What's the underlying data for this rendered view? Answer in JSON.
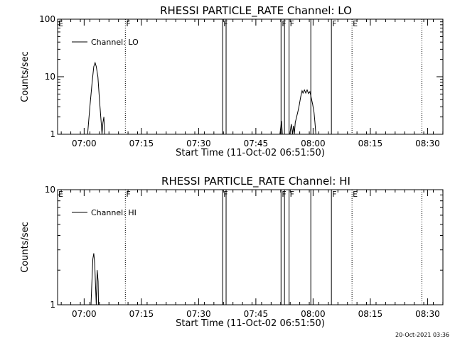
{
  "chart_data": [
    {
      "type": "line",
      "title": "RHESSI PARTICLE_RATE Channel: LO",
      "xlabel": "Start Time (11-Oct-02 06:51:50)",
      "ylabel": "Counts/sec",
      "yscale": "log",
      "ylim": [
        1,
        100
      ],
      "yticks": [
        {
          "v": 1,
          "label": "1"
        },
        {
          "v": 10,
          "label": "10"
        },
        {
          "v": 100,
          "label": "100"
        }
      ],
      "xlim": [
        6.884,
        8.567
      ],
      "xticks": [
        {
          "v": 7.0,
          "label": "07:00"
        },
        {
          "v": 7.25,
          "label": "07:15"
        },
        {
          "v": 7.5,
          "label": "07:30"
        },
        {
          "v": 7.75,
          "label": "07:45"
        },
        {
          "v": 8.0,
          "label": "08:00"
        },
        {
          "v": 8.25,
          "label": "08:15"
        },
        {
          "v": 8.5,
          "label": "08:30"
        }
      ],
      "legend": {
        "label": "Channel: LO",
        "placement": "top-left"
      },
      "flags": [
        {
          "t": 6.884,
          "label": "E",
          "style": "none"
        },
        {
          "t": 7.18,
          "label": "F",
          "style": "dotted"
        },
        {
          "t": 7.605,
          "label": "F",
          "style": "solid"
        },
        {
          "t": 7.86,
          "label": "F",
          "style": "solid"
        },
        {
          "t": 7.895,
          "label": "F",
          "style": "solid"
        },
        {
          "t": 8.08,
          "label": "F",
          "style": "solid"
        },
        {
          "t": 8.17,
          "label": "E",
          "style": "dotted"
        }
      ],
      "extra_lines": [
        {
          "t": 7.62,
          "style": "solid"
        },
        {
          "t": 7.875,
          "style": "solid"
        },
        {
          "t": 7.99,
          "style": "solid"
        },
        {
          "t": 8.475,
          "style": "dotted"
        }
      ],
      "series": [
        {
          "points": [
            [
              7.015,
              1
            ],
            [
              7.025,
              3
            ],
            [
              7.035,
              8
            ],
            [
              7.042,
              15
            ],
            [
              7.048,
              17.5
            ],
            [
              7.053,
              15
            ],
            [
              7.06,
              10
            ],
            [
              7.067,
              4
            ],
            [
              7.075,
              1.5
            ],
            [
              7.078,
              1
            ],
            [
              7.082,
              1.6
            ],
            [
              7.086,
              2
            ],
            [
              7.09,
              1
            ],
            [
              7.855,
              1
            ],
            [
              7.862,
              1.7
            ],
            [
              7.866,
              1
            ],
            [
              7.898,
              1
            ],
            [
              7.905,
              1.5
            ],
            [
              7.91,
              1
            ],
            [
              7.914,
              1.4
            ],
            [
              7.918,
              1
            ],
            [
              7.922,
              1.6
            ],
            [
              7.928,
              2
            ],
            [
              7.934,
              2.5
            ],
            [
              7.94,
              3.3
            ],
            [
              7.946,
              4.5
            ],
            [
              7.952,
              5.7
            ],
            [
              7.956,
              5.2
            ],
            [
              7.962,
              5.9
            ],
            [
              7.968,
              5.2
            ],
            [
              7.974,
              5.9
            ],
            [
              7.98,
              5.1
            ],
            [
              7.986,
              5.5
            ],
            [
              7.992,
              4.3
            ],
            [
              7.998,
              3.3
            ],
            [
              8.004,
              2.4
            ],
            [
              8.008,
              1.6
            ],
            [
              8.012,
              1
            ]
          ]
        }
      ]
    },
    {
      "type": "line",
      "title": "RHESSI PARTICLE_RATE Channel: HI",
      "xlabel": "Start Time (11-Oct-02 06:51:50)",
      "ylabel": "Counts/sec",
      "yscale": "log",
      "ylim": [
        1,
        10
      ],
      "yticks": [
        {
          "v": 1,
          "label": "1"
        },
        {
          "v": 10,
          "label": "10"
        }
      ],
      "xlim": [
        6.884,
        8.567
      ],
      "xticks": [
        {
          "v": 7.0,
          "label": "07:00"
        },
        {
          "v": 7.25,
          "label": "07:15"
        },
        {
          "v": 7.5,
          "label": "07:30"
        },
        {
          "v": 7.75,
          "label": "07:45"
        },
        {
          "v": 8.0,
          "label": "08:00"
        },
        {
          "v": 8.25,
          "label": "08:15"
        },
        {
          "v": 8.5,
          "label": "08:30"
        }
      ],
      "legend": {
        "label": "Channel: HI",
        "placement": "top-left"
      },
      "flags": [
        {
          "t": 6.884,
          "label": "E",
          "style": "none"
        },
        {
          "t": 7.18,
          "label": "F",
          "style": "dotted"
        },
        {
          "t": 7.605,
          "label": "F",
          "style": "solid"
        },
        {
          "t": 7.86,
          "label": "F",
          "style": "solid"
        },
        {
          "t": 7.895,
          "label": "F",
          "style": "solid"
        },
        {
          "t": 8.08,
          "label": "F",
          "style": "solid"
        },
        {
          "t": 8.17,
          "label": "E",
          "style": "dotted"
        }
      ],
      "extra_lines": [
        {
          "t": 7.62,
          "style": "solid"
        },
        {
          "t": 7.875,
          "style": "solid"
        },
        {
          "t": 7.99,
          "style": "solid"
        },
        {
          "t": 8.475,
          "style": "dotted"
        }
      ],
      "series": [
        {
          "points": [
            [
              7.03,
              1
            ],
            [
              7.034,
              1.6
            ],
            [
              7.038,
              2.5
            ],
            [
              7.042,
              2.8
            ],
            [
              7.046,
              2.3
            ],
            [
              7.05,
              1.4
            ],
            [
              7.053,
              1
            ],
            [
              7.057,
              2.0
            ],
            [
              7.061,
              1.6
            ],
            [
              7.063,
              1
            ]
          ]
        }
      ]
    }
  ],
  "footer": {
    "timestamp": "20-Oct-2021 03:36"
  }
}
